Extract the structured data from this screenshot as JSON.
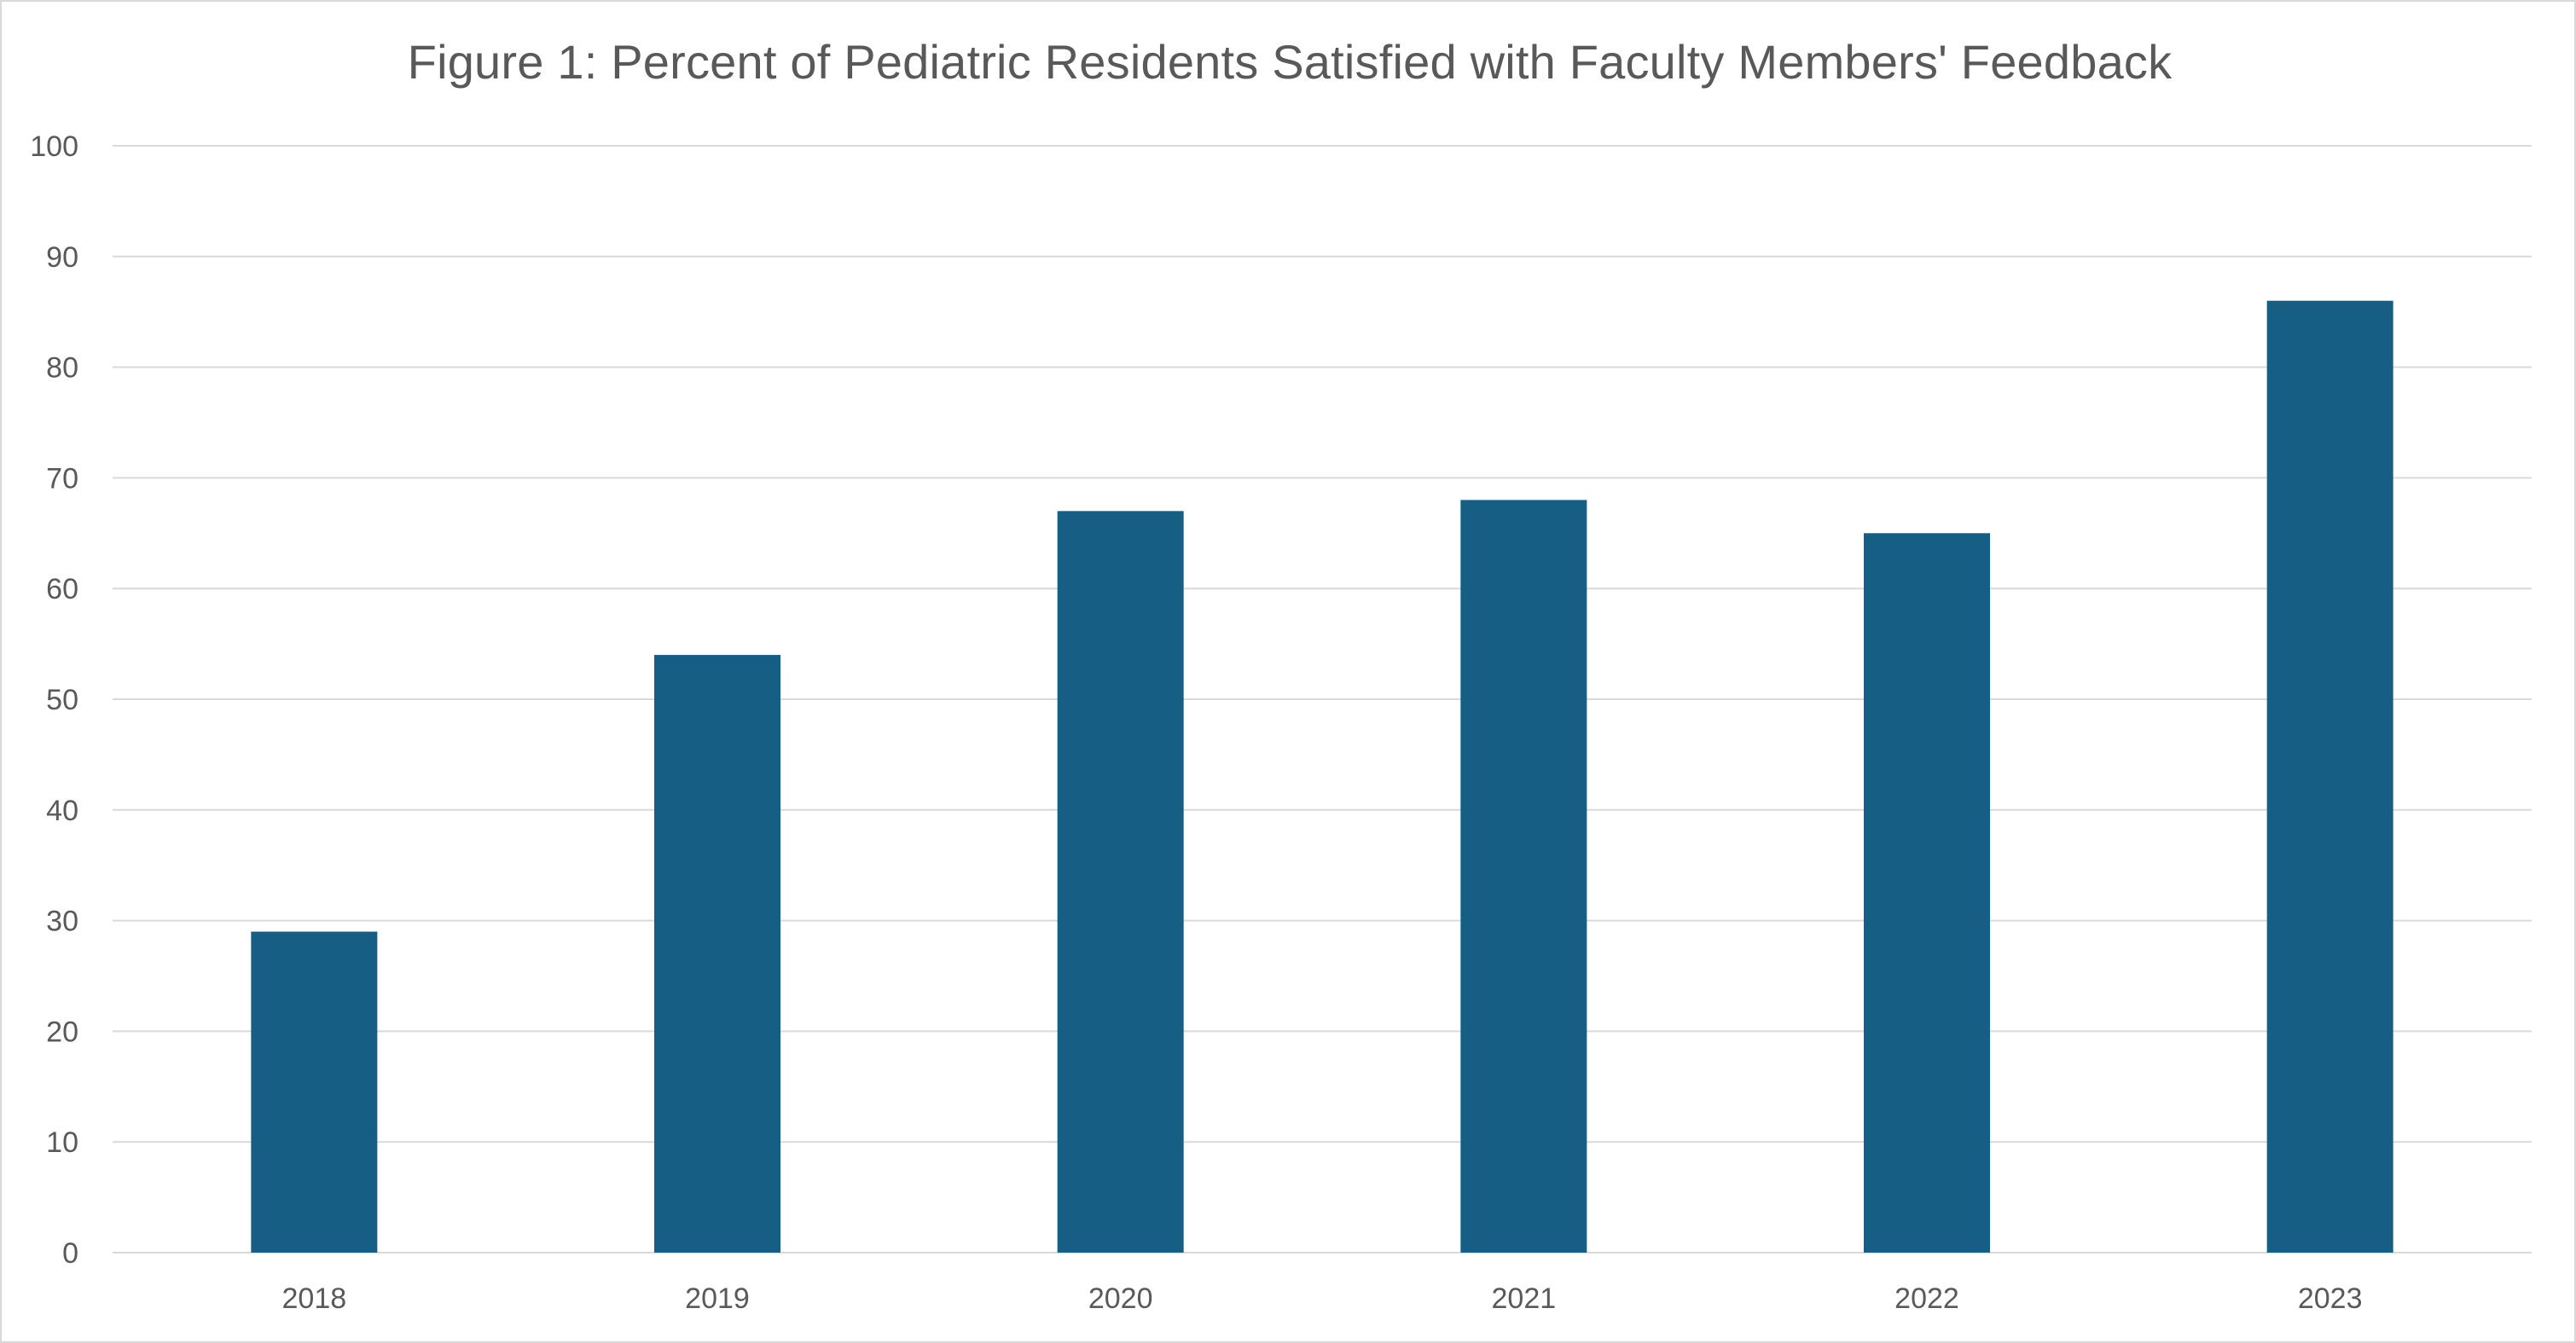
{
  "chart_data": {
    "type": "bar",
    "title": "Figure 1: Percent of Pediatric Residents Satisfied with Faculty Members' Feedback",
    "xlabel": "",
    "ylabel": "",
    "categories": [
      "2018",
      "2019",
      "2020",
      "2021",
      "2022",
      "2023"
    ],
    "values": [
      29,
      54,
      67,
      68,
      65,
      86
    ],
    "ylim": [
      0,
      100
    ],
    "yticks": [
      0,
      10,
      20,
      30,
      40,
      50,
      60,
      70,
      80,
      90,
      100
    ],
    "grid": true,
    "legend": "none",
    "bar_color": "#165E83",
    "grid_color": "#d9d9d9",
    "text_color": "#595959"
  }
}
